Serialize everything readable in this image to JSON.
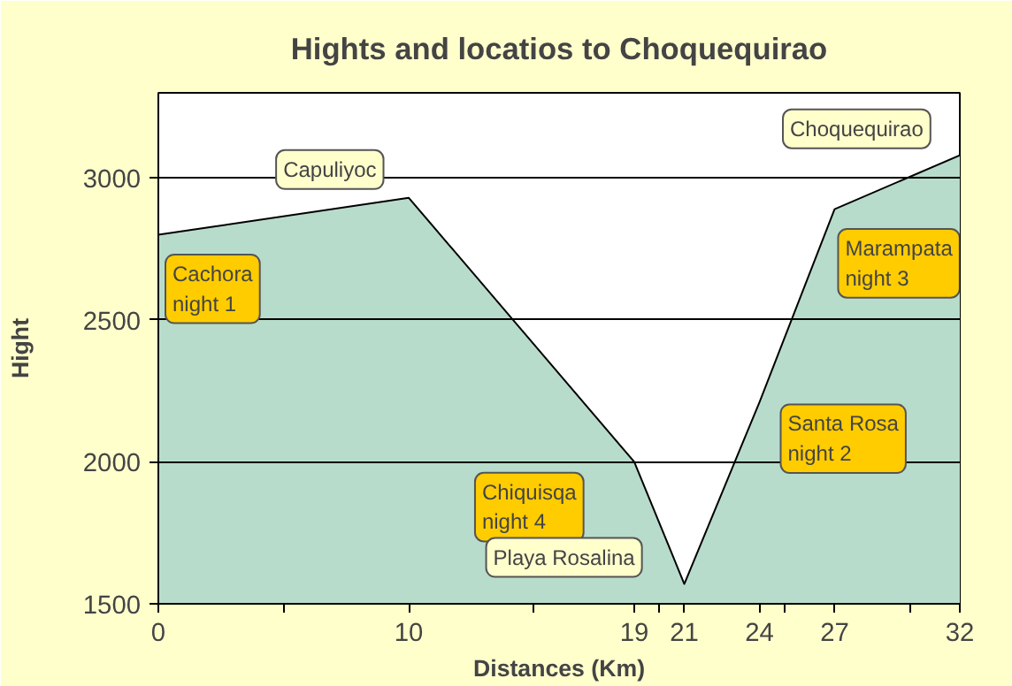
{
  "chart_data": {
    "type": "area",
    "title": "Hights and locatios to Choquequirao",
    "xlabel": "Distances (Km)",
    "ylabel": "Hight",
    "x": [
      0,
      10,
      19,
      21,
      24,
      27,
      32
    ],
    "series": [
      {
        "color": "#b8dccb",
        "values": [
          2800,
          2930,
          2000,
          1570,
          2210,
          2890,
          3080
        ]
      }
    ],
    "xlim": [
      0,
      32
    ],
    "ylim": [
      1500,
      3300
    ],
    "xticks": [
      0,
      {
        "value": 5,
        "label": null
      },
      10,
      {
        "value": 15,
        "label": null
      },
      19,
      {
        "value": 20,
        "label": null
      },
      21,
      24,
      {
        "value": 25,
        "label": null
      },
      27,
      {
        "value": 30,
        "label": null
      },
      32
    ],
    "yticks": [
      1500,
      2000,
      2500,
      3000
    ],
    "grid": "y",
    "annotations": [
      {
        "text": "Cachora\nnight 1",
        "x": 0,
        "y": 2800
      },
      {
        "text": "Capuliyoc",
        "x": 10,
        "y": 2930
      },
      {
        "text": "Chiquisqa\nnight 4",
        "x": 19,
        "y": 2000
      },
      {
        "text": "Playa Rosalina",
        "x": 21,
        "y": 1570
      },
      {
        "text": "Santa Rosa\nnight 2",
        "x": 24,
        "y": 2210
      },
      {
        "text": "Marampata\nnight 3",
        "x": 27,
        "y": 2890
      },
      {
        "text": "Choquequirao",
        "x": 32,
        "y": 3080
      }
    ]
  }
}
